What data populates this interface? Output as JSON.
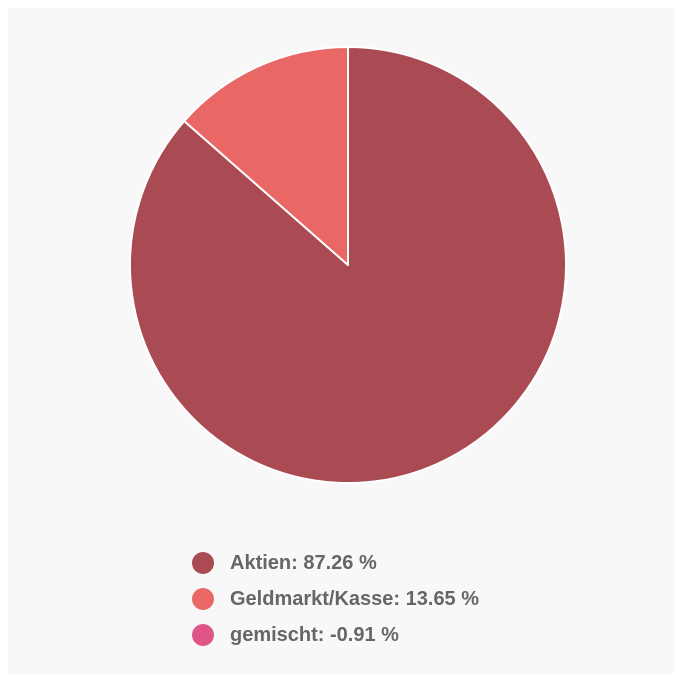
{
  "chart_data": {
    "type": "pie",
    "title": "",
    "slices": [
      {
        "name": "Aktien",
        "value": 87.26,
        "color": "#aa4a52",
        "label": "Aktien: 87.26 %"
      },
      {
        "name": "Geldmarkt/Kasse",
        "value": 13.65,
        "color": "#e96866",
        "label": "Geldmarkt/Kasse: 13.65 %"
      },
      {
        "name": "gemischt",
        "value": -0.91,
        "color": "#e05587",
        "label": "gemischt: -0.91 %"
      }
    ],
    "legend_position": "bottom",
    "start_angle": "top",
    "direction": "clockwise"
  }
}
